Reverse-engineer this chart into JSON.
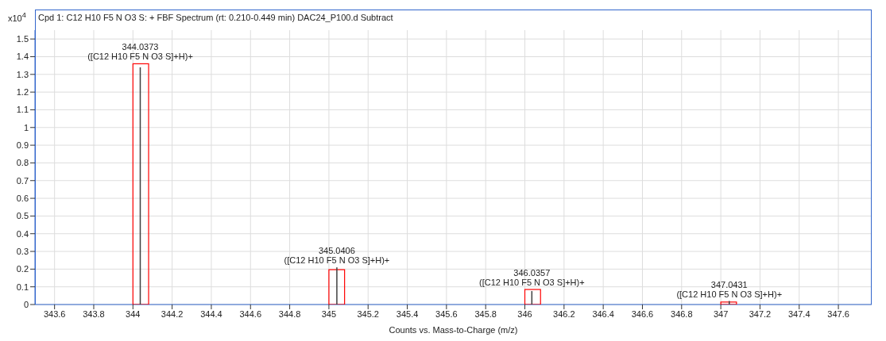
{
  "chart_data": {
    "type": "bar",
    "title": "Cpd 1: C12 H10 F5 N O3 S: + FBF Spectrum (rt: 0.210-0.449 min) DAC24_P100.d  Subtract",
    "xlabel": "Counts vs. Mass-to-Charge (m/z)",
    "ylabel": "x10$^{4}$",
    "series": [
      {
        "color": "#ff0000",
        "x": [
          344.04,
          345.04,
          346.04,
          347.04
        ],
        "values": [
          1.36,
          0.197,
          0.085,
          0.014
        ]
      },
      {
        "color": "#404040",
        "x": [
          344.0373,
          345.0406,
          346.0357,
          347.0431
        ],
        "values": [
          1.34,
          0.21,
          0.076,
          0.02
        ]
      }
    ],
    "annotations": [
      {
        "text": "344.0373\n([C12 H10 F5 N O3 S]+H)+",
        "x": 344.0373,
        "y": 1.36
      },
      {
        "text": "345.0406\n([C12 H10 F5 N O3 S]+H)+",
        "x": 345.0406,
        "y": 0.21
      },
      {
        "text": "346.0357\n([C12 H10 F5 N O3 S]+H)+",
        "x": 346.0357,
        "y": 0.085
      },
      {
        "text": "347.0431\n([C12 H10 F5 N O3 S]+H)+",
        "x": 347.0431,
        "y": 0.02
      }
    ],
    "xlim": [
      343.5,
      347.77
    ],
    "xticks": [
      343.6,
      343.8,
      344,
      344.2,
      344.4,
      344.6,
      344.8,
      345,
      345.2,
      345.4,
      345.6,
      345.8,
      346,
      346.2,
      346.4,
      346.6,
      346.8,
      347,
      347.2,
      347.4,
      347.6
    ],
    "ylim": [
      0,
      1.55
    ],
    "yticks": [
      0,
      0.1,
      0.2,
      0.3,
      0.4,
      0.5,
      0.6,
      0.7,
      0.8,
      0.9,
      1,
      1.1,
      1.2,
      1.3,
      1.4,
      1.5
    ],
    "grid": true
  }
}
